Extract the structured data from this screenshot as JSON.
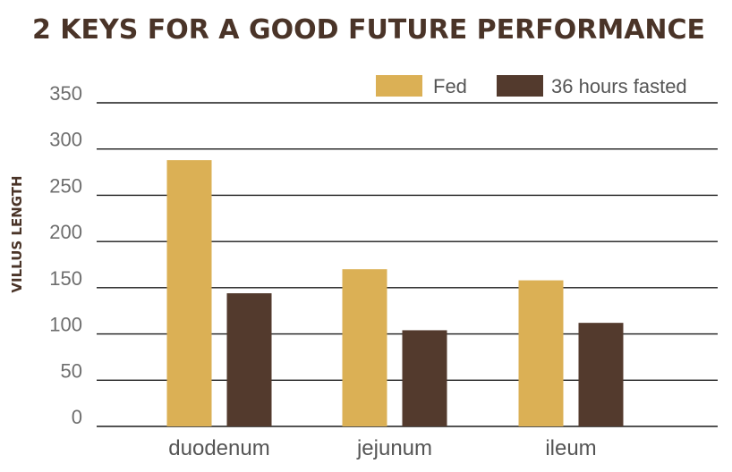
{
  "chart_data": {
    "type": "bar",
    "title": "2 KEYS FOR A GOOD FUTURE PERFORMANCE",
    "ylabel": "VILLUS LENGTH",
    "xlabel": "",
    "categories": [
      "duodenum",
      "jejunum",
      "ileum"
    ],
    "series": [
      {
        "name": "Fed",
        "values": [
          288,
          170,
          158
        ],
        "color": "#dbb055"
      },
      {
        "name": "36 hours fasted",
        "values": [
          144,
          104,
          112
        ],
        "color": "#533a2d"
      }
    ],
    "ylim": [
      0,
      350
    ],
    "yticks": [
      0,
      50,
      100,
      150,
      200,
      250,
      300,
      350
    ],
    "grid": true,
    "legend": "top-right"
  }
}
